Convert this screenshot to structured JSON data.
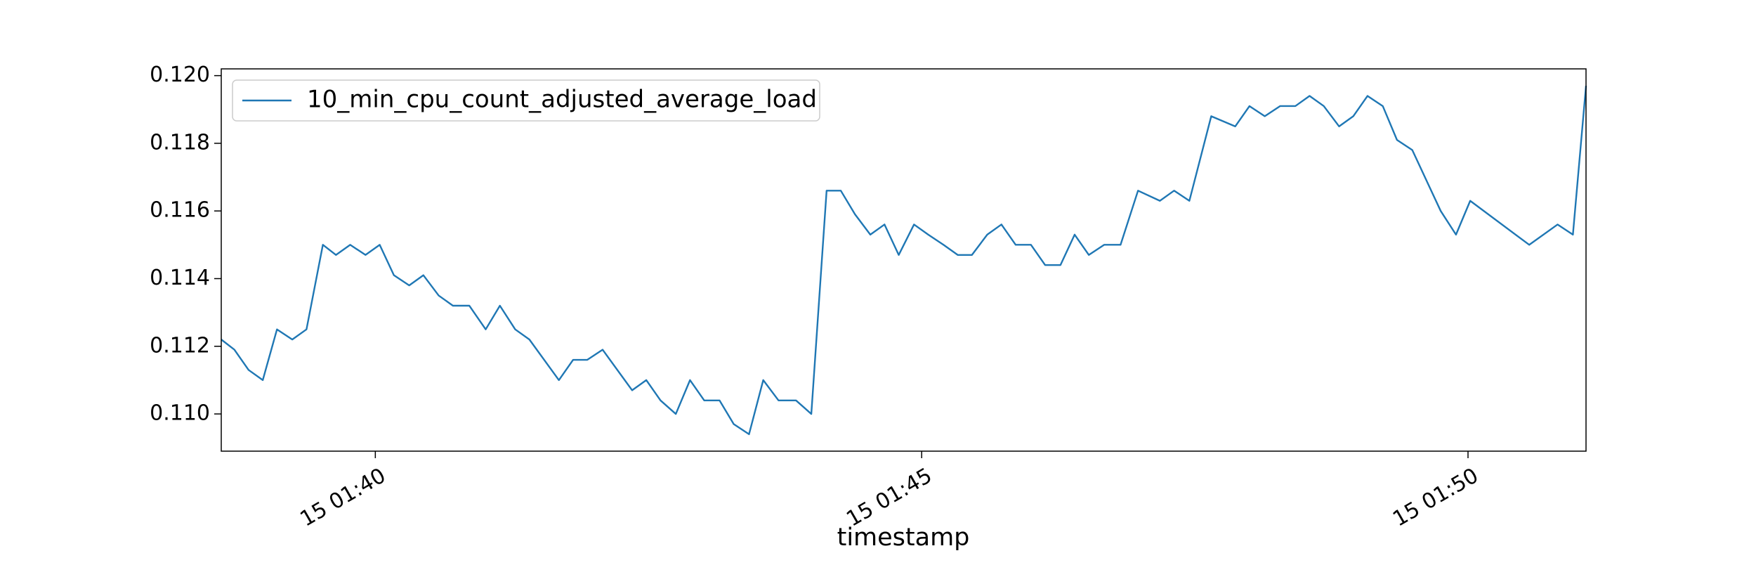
{
  "chart_data": {
    "type": "line",
    "x_label": "timestamp",
    "x": [
      38.59,
      38.71,
      38.84,
      38.97,
      39.1,
      39.24,
      39.37,
      39.52,
      39.64,
      39.77,
      39.91,
      40.04,
      40.17,
      40.31,
      40.44,
      40.58,
      40.71,
      40.86,
      41.01,
      41.14,
      41.28,
      41.41,
      41.68,
      41.81,
      41.94,
      42.08,
      42.35,
      42.48,
      42.61,
      42.75,
      42.88,
      43.01,
      43.15,
      43.28,
      43.42,
      43.55,
      43.69,
      43.85,
      43.99,
      44.13,
      44.26,
      44.39,
      44.53,
      44.66,
      44.79,
      44.93,
      45.06,
      45.2,
      45.33,
      45.46,
      45.6,
      45.73,
      45.86,
      46.0,
      46.13,
      46.27,
      46.4,
      46.53,
      46.67,
      46.82,
      46.98,
      47.18,
      47.31,
      47.45,
      47.65,
      47.87,
      48.0,
      48.14,
      48.28,
      48.42,
      48.55,
      48.68,
      48.82,
      48.95,
      49.08,
      49.22,
      49.35,
      49.49,
      49.75,
      49.89,
      50.02,
      50.56,
      50.82,
      50.96,
      51.08
    ],
    "series": [
      {
        "name": "10_min_cpu_count_adjusted_average_load",
        "color": "#1f77b4",
        "values": [
          0.1122,
          0.1119,
          0.1113,
          0.111,
          0.1125,
          0.1122,
          0.1125,
          0.115,
          0.1147,
          0.115,
          0.1147,
          0.115,
          0.1141,
          0.1138,
          0.1141,
          0.1135,
          0.1132,
          0.1132,
          0.1125,
          0.1132,
          0.1125,
          0.1122,
          0.111,
          0.1116,
          0.1116,
          0.1119,
          0.1107,
          0.111,
          0.1104,
          0.11,
          0.111,
          0.1104,
          0.1104,
          0.1097,
          0.1094,
          0.111,
          0.1104,
          0.1104,
          0.11,
          0.1166,
          0.1166,
          0.1159,
          0.1153,
          0.1156,
          0.1147,
          0.1156,
          0.1153,
          0.115,
          0.1147,
          0.1147,
          0.1153,
          0.1156,
          0.115,
          0.115,
          0.1144,
          0.1144,
          0.1153,
          0.1147,
          0.115,
          0.115,
          0.1166,
          0.1163,
          0.1166,
          0.1163,
          0.1188,
          0.1185,
          0.1191,
          0.1188,
          0.1191,
          0.1191,
          0.1194,
          0.1191,
          0.1185,
          0.1188,
          0.1194,
          0.1191,
          0.1181,
          0.1178,
          0.116,
          0.1153,
          0.1163,
          0.115,
          0.1156,
          0.1153,
          0.1197
        ]
      }
    ],
    "xlim": [
      38.59,
      51.08
    ],
    "xticks": [
      {
        "value": 40,
        "label": "15 01:40"
      },
      {
        "value": 45,
        "label": "15 01:45"
      },
      {
        "value": 50,
        "label": "15 01:50"
      }
    ],
    "ylim": [
      0.1089,
      0.1202
    ],
    "yticks": [
      {
        "value": 0.11,
        "label": "0.110"
      },
      {
        "value": 0.112,
        "label": "0.112"
      },
      {
        "value": 0.114,
        "label": "0.114"
      },
      {
        "value": 0.116,
        "label": "0.116"
      },
      {
        "value": 0.118,
        "label": "0.118"
      },
      {
        "value": 0.12,
        "label": "0.120"
      }
    ],
    "legend": "upper left",
    "grid": false
  }
}
